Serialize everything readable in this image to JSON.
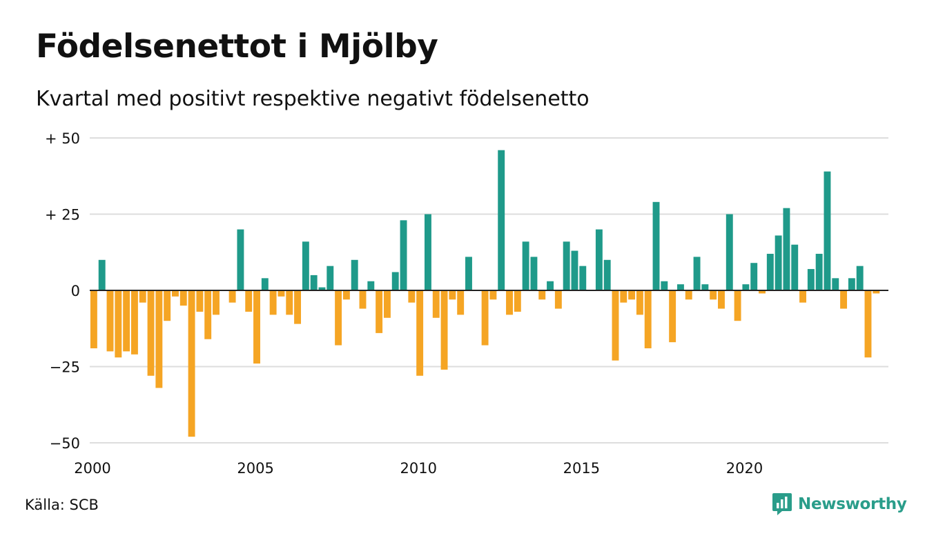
{
  "chart_data": {
    "type": "bar",
    "title": "Födelsenettot i Mjölby",
    "subtitle": "Kvartal med positivt respektive negativt födelsenetto",
    "source": "Källa: SCB",
    "brand": "Newsworthy",
    "x_start": 2000,
    "x_end": 2024.5,
    "periods_per_year": 4,
    "ylim": [
      -50,
      50
    ],
    "y_ticks": [
      {
        "value": 50,
        "label": "+ 50"
      },
      {
        "value": 25,
        "label": "+ 25"
      },
      {
        "value": 0,
        "label": "0"
      },
      {
        "value": -25,
        "label": "−25"
      },
      {
        "value": -50,
        "label": "−50"
      }
    ],
    "x_ticks": [
      {
        "value": 2000,
        "label": "2000"
      },
      {
        "value": 2005,
        "label": "2005"
      },
      {
        "value": 2010,
        "label": "2010"
      },
      {
        "value": 2015,
        "label": "2015"
      },
      {
        "value": 2020,
        "label": "2020"
      }
    ],
    "grid": true,
    "legend": "none",
    "colors": {
      "positive": "#1f9a8a",
      "negative": "#f5a524",
      "grid": "#dddddd",
      "axis": "#222222",
      "brand": "#2a9d8a"
    },
    "values": [
      -19,
      10,
      -20,
      -22,
      -20,
      -21,
      -4,
      -28,
      -32,
      -10,
      -2,
      -5,
      -48,
      -7,
      -16,
      -8,
      0,
      -4,
      20,
      -7,
      -24,
      4,
      -8,
      -2,
      -8,
      -11,
      16,
      5,
      1,
      8,
      -18,
      -3,
      10,
      -6,
      3,
      -14,
      -9,
      6,
      23,
      -4,
      -28,
      25,
      -9,
      -26,
      -3,
      -8,
      11,
      0,
      -18,
      -3,
      46,
      -8,
      -7,
      16,
      11,
      -3,
      3,
      -6,
      16,
      13,
      8,
      0,
      20,
      10,
      -23,
      -4,
      -3,
      -8,
      -19,
      29,
      3,
      -17,
      2,
      -3,
      11,
      2,
      -3,
      -6,
      25,
      -10,
      2,
      9,
      -1,
      12,
      18,
      27,
      15,
      -4,
      7,
      12,
      39,
      4,
      -6,
      4,
      8,
      -22,
      -1
    ]
  }
}
